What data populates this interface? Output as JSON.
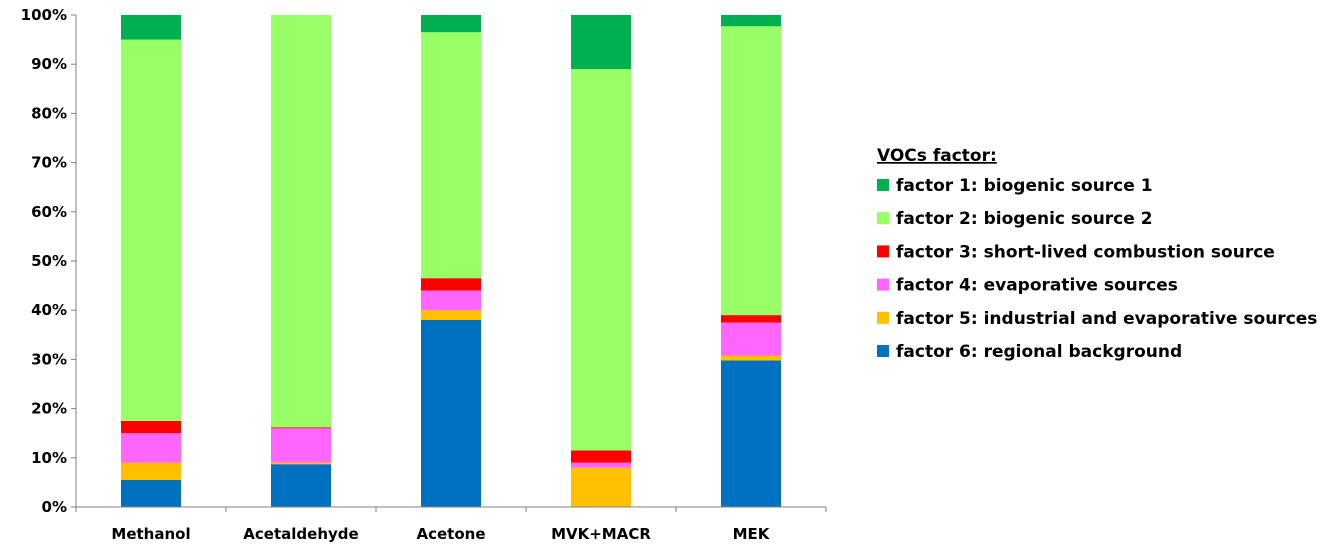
{
  "chart_data": {
    "type": "bar",
    "stacked": true,
    "percent_stacked": true,
    "categories": [
      "Methanol",
      "Acetaldehyde",
      "Acetone",
      "MVK+MACR",
      "MEK"
    ],
    "series": [
      {
        "name": "factor 6: regional background",
        "color": "#0070C0",
        "values": [
          5.5,
          8.7,
          38.0,
          0.0,
          29.8
        ]
      },
      {
        "name": "factor 5: industrial and evaporative sources",
        "color": "#FFC000",
        "values": [
          3.5,
          0.3,
          2.0,
          8.0,
          1.0
        ]
      },
      {
        "name": "factor 4: evaporative sources",
        "color": "#FF66FF",
        "values": [
          6.0,
          7.0,
          4.0,
          1.0,
          6.7
        ]
      },
      {
        "name": "factor 3: short-lived combustion source",
        "color": "#FF0000",
        "values": [
          2.5,
          0.2,
          2.5,
          2.5,
          1.5
        ]
      },
      {
        "name": "factor 2: biogenic source 2",
        "color": "#99FF66",
        "values": [
          77.5,
          83.8,
          50.0,
          77.5,
          58.7
        ]
      },
      {
        "name": "factor 1: biogenic source 1",
        "color": "#00B050",
        "values": [
          5.0,
          0.0,
          3.5,
          11.0,
          2.3
        ]
      }
    ],
    "y_ticks": [
      "0%",
      "10%",
      "20%",
      "30%",
      "40%",
      "50%",
      "60%",
      "70%",
      "80%",
      "90%",
      "100%"
    ],
    "ylim": [
      0,
      100
    ],
    "grid": false,
    "legend_title": "VOCs factor:",
    "legend_position": "right",
    "legend_order": [
      "factor 1: biogenic source 1",
      "factor 2: biogenic source 2",
      "factor 3: short-lived combustion source",
      "factor 4: evaporative sources",
      "factor 5: industrial and evaporative sources",
      "factor 6: regional background"
    ]
  }
}
